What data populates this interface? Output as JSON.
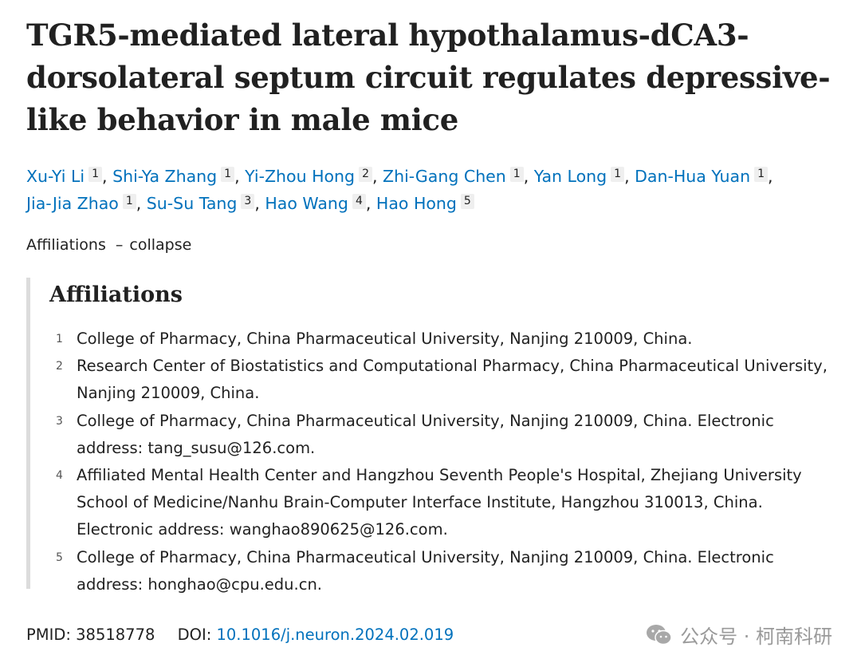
{
  "article": {
    "title": "TGR5-mediated lateral hypothalamus-dCA3-dorsolateral septum circuit regulates depressive-like behavior in male mice",
    "authors": [
      {
        "name": "Xu-Yi Li",
        "aff": "1"
      },
      {
        "name": "Shi-Ya Zhang",
        "aff": "1"
      },
      {
        "name": "Yi-Zhou Hong",
        "aff": "2"
      },
      {
        "name": "Zhi-Gang Chen",
        "aff": "1"
      },
      {
        "name": "Yan Long",
        "aff": "1"
      },
      {
        "name": "Dan-Hua Yuan",
        "aff": "1"
      },
      {
        "name": "Jia-Jia Zhao",
        "aff": "1"
      },
      {
        "name": "Su-Su Tang",
        "aff": "3"
      },
      {
        "name": "Hao Wang",
        "aff": "4"
      },
      {
        "name": "Hao Hong",
        "aff": "5"
      }
    ],
    "affiliations_toggle": {
      "label": "Affiliations",
      "dash": "–",
      "action": "collapse"
    },
    "affiliations_heading": "Affiliations",
    "affiliations": [
      {
        "num": "1",
        "text": "College of Pharmacy, China Pharmaceutical University, Nanjing 210009, China."
      },
      {
        "num": "2",
        "text": "Research Center of Biostatistics and Computational Pharmacy, China Pharmaceutical University, Nanjing 210009, China."
      },
      {
        "num": "3",
        "text": "College of Pharmacy, China Pharmaceutical University, Nanjing 210009, China. Electronic address: tang_susu@126.com."
      },
      {
        "num": "4",
        "text": "Affiliated Mental Health Center and Hangzhou Seventh People's Hospital, Zhejiang University School of Medicine/Nanhu Brain-Computer Interface Institute, Hangzhou 310013, China. Electronic address: wanghao890625@126.com."
      },
      {
        "num": "5",
        "text": "College of Pharmacy, China Pharmaceutical University, Nanjing 210009, China. Electronic address: honghao@cpu.edu.cn."
      }
    ],
    "pmid_label": "PMID:",
    "pmid": "38518778",
    "doi_label": "DOI:",
    "doi": "10.1016/j.neuron.2024.02.019"
  },
  "watermark": {
    "text": "公众号 · 柯南科研",
    "icon": "wechat-icon"
  },
  "colors": {
    "link": "#0071bc",
    "text": "#212121",
    "badge_bg": "#efefef",
    "rule": "#dcdcdc"
  }
}
